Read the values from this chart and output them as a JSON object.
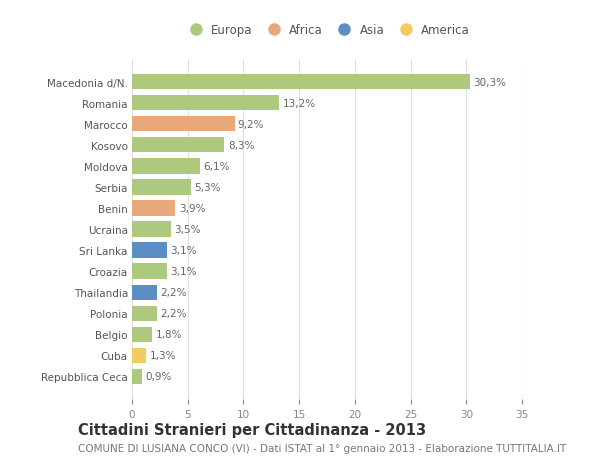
{
  "categories": [
    "Macedonia d/N.",
    "Romania",
    "Marocco",
    "Kosovo",
    "Moldova",
    "Serbia",
    "Benin",
    "Ucraina",
    "Sri Lanka",
    "Croazia",
    "Thailandia",
    "Polonia",
    "Belgio",
    "Cuba",
    "Repubblica Ceca"
  ],
  "values": [
    30.3,
    13.2,
    9.2,
    8.3,
    6.1,
    5.3,
    3.9,
    3.5,
    3.1,
    3.1,
    2.2,
    2.2,
    1.8,
    1.3,
    0.9
  ],
  "labels": [
    "30,3%",
    "13,2%",
    "9,2%",
    "8,3%",
    "6,1%",
    "5,3%",
    "3,9%",
    "3,5%",
    "3,1%",
    "3,1%",
    "2,2%",
    "2,2%",
    "1,8%",
    "1,3%",
    "0,9%"
  ],
  "continents": [
    "Europa",
    "Europa",
    "Africa",
    "Europa",
    "Europa",
    "Europa",
    "Africa",
    "Europa",
    "Asia",
    "Europa",
    "Asia",
    "Europa",
    "Europa",
    "America",
    "Europa"
  ],
  "continent_colors": {
    "Europa": "#adc97e",
    "Africa": "#e8a87a",
    "Asia": "#5b8ec4",
    "America": "#f2cc60"
  },
  "legend_order": [
    "Europa",
    "Africa",
    "Asia",
    "America"
  ],
  "title": "Cittadini Stranieri per Cittadinanza - 2013",
  "subtitle": "COMUNE DI LUSIANA CONCO (VI) - Dati ISTAT al 1° gennaio 2013 - Elaborazione TUTTITALIA.IT",
  "xlim": [
    0,
    35
  ],
  "xticks": [
    0,
    5,
    10,
    15,
    20,
    25,
    30,
    35
  ],
  "background_color": "#ffffff",
  "grid_color": "#e0e0e0",
  "bar_height": 0.72,
  "title_fontsize": 10.5,
  "subtitle_fontsize": 7.5,
  "label_fontsize": 7.5,
  "tick_fontsize": 7.5,
  "legend_fontsize": 8.5
}
